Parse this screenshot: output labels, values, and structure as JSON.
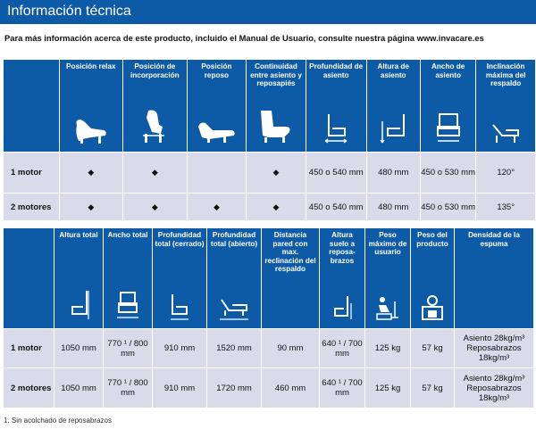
{
  "header": {
    "title": "Información técnica"
  },
  "intro": "Para más información acerca de este producto, incluido el Manual de Usuario, consulte nuestra página www.invacare.es",
  "table1": {
    "columns": [
      {
        "label": "Posición relax",
        "icon": "recliner-relax-icon"
      },
      {
        "label": "Posición de incorporación",
        "icon": "recliner-lift-icon"
      },
      {
        "label": "Posición reposo",
        "icon": "recliner-rest-icon"
      },
      {
        "label": "Continuidad entre asiento y reposapiés",
        "icon": "recliner-continuity-icon"
      },
      {
        "label": "Profundidad de asiento",
        "icon": "seat-depth-icon"
      },
      {
        "label": "Altura de asiento",
        "icon": "seat-height-icon"
      },
      {
        "label": "Ancho de asiento",
        "icon": "seat-width-icon"
      },
      {
        "label": "Inclinación máxima del respaldo",
        "icon": "backrest-tilt-icon"
      }
    ],
    "rows": [
      {
        "label": "1 motor",
        "cells": [
          "◆",
          "◆",
          "",
          "◆",
          "450 o 540 mm",
          "480 mm",
          "450 o 530 mm",
          "120°"
        ]
      },
      {
        "label": "2 motores",
        "cells": [
          "◆",
          "◆",
          "◆",
          "◆",
          "450 o 540 mm",
          "480 mm",
          "450 o 530 mm",
          "135°"
        ]
      }
    ]
  },
  "table2": {
    "columns": [
      {
        "label": "Altura total",
        "icon": "total-height-icon"
      },
      {
        "label": "Ancho total",
        "icon": "total-width-icon"
      },
      {
        "label": "Profundidad total (cerrado)",
        "icon": "depth-closed-icon"
      },
      {
        "label": "Profundidad total (abierto)",
        "icon": "depth-open-icon"
      },
      {
        "label": "Distancia pared con max. reclinación del respaldo",
        "icon": ""
      },
      {
        "label": "Altura suelo a reposa-brazos",
        "icon": "armrest-height-icon"
      },
      {
        "label": "Peso máximo de usuario",
        "icon": "max-user-weight-icon"
      },
      {
        "label": "Peso del producto",
        "icon": "product-weight-icon"
      },
      {
        "label": "Densidad de la espuma",
        "icon": ""
      }
    ],
    "rows": [
      {
        "label": "1 motor",
        "cells": [
          "1050 mm",
          "770 ¹ / 800 mm",
          "910 mm",
          "1520 mm",
          "90 mm",
          "640 ¹ / 700 mm",
          "125 kg",
          "57 kg",
          "Asiento 28kg/m³ Reposabrazos 18kg/m³"
        ]
      },
      {
        "label": "2 motores",
        "cells": [
          "1050 mm",
          "770 ¹ / 800 mm",
          "910 mm",
          "1720 mm",
          "460 mm",
          "640 ¹ / 700 mm",
          "125 kg",
          "57 kg",
          "Asiento 28kg/m³ Reposabrazos 18kg/m³"
        ]
      }
    ]
  },
  "footnote": "1.   Sin acolchado de reposabrazos"
}
